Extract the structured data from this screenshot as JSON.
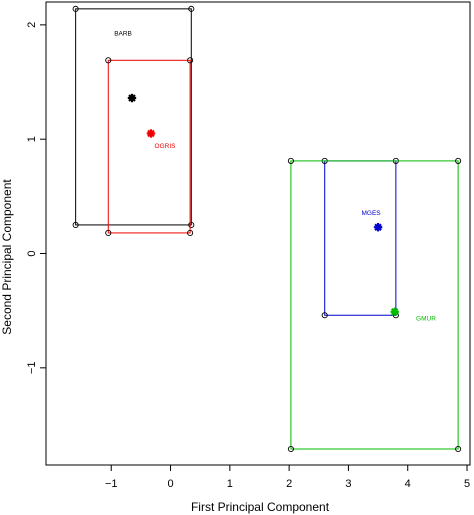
{
  "chart_data": {
    "type": "scatter",
    "title": "",
    "xlabel": "First Principal Component",
    "ylabel": "Second Principal Component",
    "xlim": [
      -2.1,
      5.05
    ],
    "ylim": [
      -1.85,
      2.2
    ],
    "x_ticks": [
      -1,
      0,
      1,
      2,
      3,
      4,
      5
    ],
    "y_ticks": [
      -1,
      0,
      1,
      2
    ],
    "grid": false,
    "series": [
      {
        "name": "BARB",
        "color": "#000000",
        "centroid": [
          -0.65,
          1.36
        ],
        "rectangle": {
          "x_min": -1.6,
          "x_max": 0.35,
          "y_min": 0.25,
          "y_max": 2.14
        },
        "label_position": [
          -0.95,
          1.92
        ]
      },
      {
        "name": "OGRIS",
        "color": "#ee0000",
        "centroid": [
          -0.33,
          1.05
        ],
        "rectangle": {
          "x_min": -1.05,
          "x_max": 0.33,
          "y_min": 0.18,
          "y_max": 1.69
        },
        "label_position": [
          -0.27,
          0.94
        ]
      },
      {
        "name": "MGES",
        "color": "#0000cc",
        "centroid": [
          3.5,
          0.23
        ],
        "rectangle": {
          "x_min": 2.6,
          "x_max": 3.8,
          "y_min": -0.54,
          "y_max": 0.81
        },
        "label_position": [
          3.22,
          0.35
        ]
      },
      {
        "name": "GMUR",
        "color": "#00bb00",
        "centroid": [
          3.78,
          -0.51
        ],
        "rectangle": {
          "x_min": 2.03,
          "x_max": 4.85,
          "y_min": -1.71,
          "y_max": 0.81
        },
        "label_position": [
          4.14,
          -0.57
        ]
      }
    ]
  }
}
